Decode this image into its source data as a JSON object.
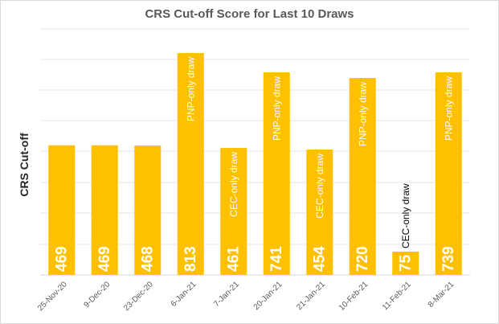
{
  "chart_data": {
    "type": "bar",
    "title": "CRS Cut-off Score for Last 10 Draws",
    "ylabel": "CRS Cut-off",
    "xlabel": "",
    "categories": [
      "25-Nov-20",
      "9-Dec-20",
      "23-Dec-20",
      "6-Jan-21",
      "7-Jan-21",
      "20-Jan-21",
      "21-Jan-21",
      "10-Feb-21",
      "11-Feb-21",
      "8-Mar-21"
    ],
    "values": [
      469,
      469,
      468,
      813,
      461,
      741,
      454,
      720,
      75,
      739
    ],
    "annotations": [
      "",
      "",
      "",
      "PNP-only draw",
      "CEC-only draw",
      "PNP-only draw",
      "CEC-only draw",
      "PNP-only draw",
      "CEC-only draw",
      "PNP-only draw"
    ],
    "y_axis": "no tick labels; bar lengths not to a common scale",
    "grid": true,
    "legend": "none",
    "bar_color": "#FFC000",
    "label_color": "#FFFFFF"
  }
}
